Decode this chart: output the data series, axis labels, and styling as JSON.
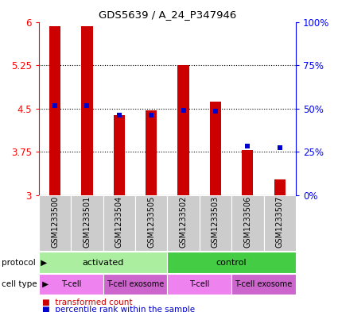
{
  "title": "GDS5639 / A_24_P347946",
  "samples": [
    "GSM1233500",
    "GSM1233501",
    "GSM1233504",
    "GSM1233505",
    "GSM1233502",
    "GSM1233503",
    "GSM1233506",
    "GSM1233507"
  ],
  "red_values": [
    5.93,
    5.92,
    4.38,
    4.46,
    5.25,
    4.62,
    3.78,
    3.27
  ],
  "blue_values": [
    4.55,
    4.55,
    4.38,
    4.38,
    4.46,
    4.45,
    3.85,
    3.82
  ],
  "ylim_left": [
    3,
    6
  ],
  "ylim_right": [
    0,
    100
  ],
  "yticks_left": [
    3,
    3.75,
    4.5,
    5.25,
    6
  ],
  "yticks_right": [
    0,
    25,
    50,
    75,
    100
  ],
  "ytick_labels_left": [
    "3",
    "3.75",
    "4.5",
    "5.25",
    "6"
  ],
  "ytick_labels_right": [
    "0%",
    "25%",
    "50%",
    "75%",
    "100%"
  ],
  "bar_color": "#CC0000",
  "dot_color": "#0000CC",
  "protocol_color_activated": "#ABEEA0",
  "protocol_color_control": "#44CC44",
  "cell_tcell_color": "#EE82EE",
  "cell_exosome_color": "#CC66CC",
  "sample_bg_color": "#CCCCCC",
  "legend_red_label": "transformed count",
  "legend_blue_label": "percentile rank within the sample",
  "bar_width": 0.35
}
